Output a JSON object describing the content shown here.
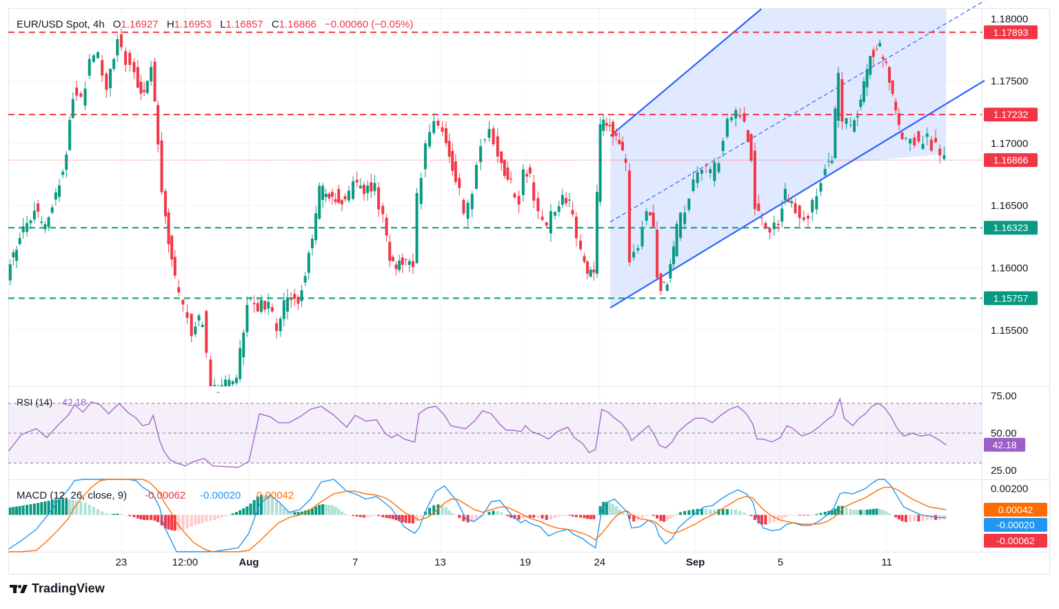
{
  "header": {
    "symbol": "EUR/USD Spot, 4h",
    "open_label": "O",
    "open": "1.16927",
    "high_label": "H",
    "high": "1.16953",
    "low_label": "L",
    "low": "1.16857",
    "close_label": "C",
    "close": "1.16866",
    "change": "−0.00060 (−0.05%)"
  },
  "brand": "TradingView",
  "colors": {
    "up": "#089981",
    "down": "#f23645",
    "channel": "#2962ff",
    "channel_fill": "#dbe5ff",
    "rsi": "#9c5ec9",
    "macd": "#2196f3",
    "signal": "#ff6d00",
    "hist_up_strong": "#089981",
    "hist_up_weak": "#acdfd5",
    "hist_dn_strong": "#f23645",
    "hist_dn_weak": "#fccbcd",
    "resistance": "#f23645",
    "support": "#089981"
  },
  "chart_data": [
    {
      "type": "candlestick",
      "timeframe": "4h",
      "y_axis": {
        "ticks": [
          "1.15500",
          "1.16000",
          "1.16500",
          "1.17000",
          "1.17500",
          "1.18000"
        ],
        "ylim": [
          1.1505,
          1.1808
        ]
      },
      "x_axis": {
        "ticks": [
          "23",
          "12:00",
          "Aug",
          "7",
          "13",
          "19",
          "24",
          "Sep",
          "5",
          "11"
        ]
      },
      "last_price": "1.16866",
      "horizontal_levels": [
        {
          "value": 1.17893,
          "label": "1.17893",
          "kind": "resistance"
        },
        {
          "value": 1.17232,
          "label": "1.17232",
          "kind": "resistance"
        },
        {
          "value": 1.16323,
          "label": "1.16323",
          "kind": "support"
        },
        {
          "value": 1.15757,
          "label": "1.15757",
          "kind": "support"
        }
      ],
      "ascending_channel": {
        "upper": [
          [
            26.0,
            1.1706
          ],
          [
            33.1,
            1.1808
          ]
        ],
        "lower": [
          [
            26.0,
            1.1568
          ],
          [
            37.3,
            1.1685
          ]
        ],
        "midline": [
          [
            26.0,
            1.1637
          ],
          [
            37.3,
            1.1751
          ]
        ]
      },
      "price_path": [
        [
          -2.3,
          1.1596
        ],
        [
          -1.7,
          1.1626
        ],
        [
          -1.0,
          1.1648
        ],
        [
          -0.5,
          1.163
        ],
        [
          0.0,
          1.1663
        ],
        [
          0.5,
          1.169
        ],
        [
          0.8,
          1.174
        ],
        [
          1.2,
          1.1735
        ],
        [
          1.6,
          1.1765
        ],
        [
          2.0,
          1.177
        ],
        [
          2.4,
          1.1745
        ],
        [
          2.9,
          1.1785
        ],
        [
          3.3,
          1.1768
        ],
        [
          3.7,
          1.176
        ],
        [
          4.0,
          1.174
        ],
        [
          4.3,
          1.1752
        ],
        [
          4.5,
          1.176
        ],
        [
          4.8,
          1.17
        ],
        [
          5.0,
          1.166
        ],
        [
          5.3,
          1.162
        ],
        [
          5.6,
          1.159
        ],
        [
          6.0,
          1.157
        ],
        [
          6.4,
          1.155
        ],
        [
          6.9,
          1.156
        ],
        [
          7.3,
          1.15
        ],
        [
          8.5,
          1.151
        ],
        [
          9.0,
          1.1575
        ],
        [
          9.5,
          1.157
        ],
        [
          10.0,
          1.1568
        ],
        [
          10.4,
          1.1555
        ],
        [
          10.9,
          1.1575
        ],
        [
          11.4,
          1.1576
        ],
        [
          11.9,
          1.161
        ],
        [
          12.4,
          1.166
        ],
        [
          13.0,
          1.166
        ],
        [
          13.6,
          1.165
        ],
        [
          14.0,
          1.167
        ],
        [
          14.5,
          1.1665
        ],
        [
          15.0,
          1.1665
        ],
        [
          15.4,
          1.164
        ],
        [
          15.7,
          1.161
        ],
        [
          16.0,
          1.16
        ],
        [
          16.3,
          1.1605
        ],
        [
          16.8,
          1.16
        ],
        [
          17.0,
          1.1655
        ],
        [
          17.4,
          1.1695
        ],
        [
          17.8,
          1.1715
        ],
        [
          18.2,
          1.1715
        ],
        [
          18.5,
          1.169
        ],
        [
          18.8,
          1.1675
        ],
        [
          19.2,
          1.1645
        ],
        [
          19.6,
          1.166
        ],
        [
          20.0,
          1.17
        ],
        [
          20.4,
          1.171
        ],
        [
          20.8,
          1.169
        ],
        [
          21.1,
          1.1675
        ],
        [
          21.4,
          1.1665
        ],
        [
          21.8,
          1.1655
        ],
        [
          22.0,
          1.168
        ],
        [
          22.3,
          1.167
        ],
        [
          22.7,
          1.1645
        ],
        [
          23.1,
          1.1633
        ],
        [
          23.5,
          1.165
        ],
        [
          24.0,
          1.1656
        ],
        [
          24.3,
          1.1642
        ],
        [
          24.7,
          1.1612
        ],
        [
          25.0,
          1.159
        ],
        [
          25.3,
          1.16
        ],
        [
          25.6,
          1.1715
        ],
        [
          25.9,
          1.172
        ],
        [
          26.2,
          1.1708
        ],
        [
          26.5,
          1.17
        ],
        [
          26.8,
          1.168
        ],
        [
          27.0,
          1.161
        ],
        [
          27.4,
          1.162
        ],
        [
          27.8,
          1.165
        ],
        [
          28.1,
          1.1635
        ],
        [
          28.3,
          1.159
        ],
        [
          28.6,
          1.1585
        ],
        [
          28.9,
          1.16
        ],
        [
          29.2,
          1.163
        ],
        [
          29.6,
          1.165
        ],
        [
          30.0,
          1.167
        ],
        [
          30.4,
          1.168
        ],
        [
          30.8,
          1.1675
        ],
        [
          31.2,
          1.169
        ],
        [
          31.6,
          1.1715
        ],
        [
          32.0,
          1.1725
        ],
        [
          32.4,
          1.1715
        ],
        [
          32.7,
          1.169
        ],
        [
          32.9,
          1.165
        ],
        [
          33.2,
          1.164
        ],
        [
          33.6,
          1.1628
        ],
        [
          34.0,
          1.164
        ],
        [
          34.3,
          1.166
        ],
        [
          34.6,
          1.1655
        ],
        [
          35.0,
          1.164
        ],
        [
          35.4,
          1.1645
        ],
        [
          35.8,
          1.166
        ],
        [
          36.2,
          1.168
        ],
        [
          36.5,
          1.169
        ],
        [
          36.8,
          1.1755
        ],
        [
          37.0,
          1.172
        ],
        [
          37.4,
          1.171
        ],
        [
          37.7,
          1.1725
        ],
        [
          38.0,
          1.1745
        ],
        [
          38.3,
          1.177
        ],
        [
          38.6,
          1.178
        ],
        [
          38.9,
          1.177
        ],
        [
          39.2,
          1.175
        ],
        [
          39.5,
          1.1725
        ],
        [
          39.8,
          1.17
        ],
        [
          40.2,
          1.1708
        ],
        [
          40.6,
          1.17
        ],
        [
          41.0,
          1.1705
        ],
        [
          41.4,
          1.1695
        ],
        [
          41.8,
          1.1687
        ]
      ]
    },
    {
      "type": "line",
      "title": "RSI (14)",
      "last_value": "42.18",
      "y_axis": {
        "ticks": [
          "25.00",
          "50.00",
          "75.00"
        ],
        "ylim": [
          19,
          81
        ]
      },
      "x": [
        -2.3,
        -1.7,
        -1.0,
        -0.5,
        0.0,
        0.5,
        0.8,
        1.2,
        1.6,
        2.0,
        2.4,
        2.9,
        3.3,
        3.7,
        4.0,
        4.3,
        4.5,
        4.8,
        5.0,
        5.3,
        5.6,
        6.0,
        6.4,
        6.9,
        7.3,
        8.5,
        9.0,
        9.5,
        10.0,
        10.4,
        10.9,
        11.4,
        11.9,
        12.4,
        13.0,
        13.6,
        14.0,
        14.5,
        15.0,
        15.4,
        15.7,
        16.0,
        16.3,
        16.8,
        17.0,
        17.4,
        17.8,
        18.2,
        18.5,
        18.8,
        19.2,
        19.6,
        20.0,
        20.4,
        20.8,
        21.1,
        21.4,
        21.8,
        22.0,
        22.3,
        22.7,
        23.1,
        23.5,
        24.0,
        24.3,
        24.7,
        25.0,
        25.3,
        25.6,
        25.9,
        26.2,
        26.5,
        26.8,
        27.0,
        27.4,
        27.8,
        28.1,
        28.3,
        28.6,
        28.9,
        29.2,
        29.6,
        30.0,
        30.4,
        30.8,
        31.2,
        31.6,
        32.0,
        32.4,
        32.7,
        32.9,
        33.2,
        33.6,
        34.0,
        34.3,
        34.6,
        35.0,
        35.4,
        35.8,
        36.2,
        36.5,
        36.8,
        37.0,
        37.4,
        37.7,
        38.0,
        38.3,
        38.6,
        38.9,
        39.2,
        39.5,
        39.8,
        40.2,
        40.6,
        41.0,
        41.4,
        41.8
      ],
      "values": [
        38,
        49,
        53,
        47,
        55,
        62,
        69,
        64,
        71,
        69,
        63,
        70,
        64,
        60,
        55,
        56,
        62,
        45,
        38,
        32,
        30,
        28,
        31,
        33,
        28,
        27,
        31,
        63,
        61,
        57,
        57,
        61,
        66,
        68,
        62,
        54,
        62,
        58,
        59,
        50,
        47,
        49,
        46,
        44,
        63,
        67,
        68,
        62,
        55,
        54,
        53,
        58,
        65,
        63,
        56,
        52,
        52,
        51,
        55,
        51,
        49,
        46,
        51,
        54,
        47,
        43,
        37,
        39,
        66,
        64,
        60,
        57,
        52,
        45,
        50,
        55,
        48,
        42,
        40,
        44,
        51,
        56,
        60,
        60,
        57,
        62,
        66,
        68,
        63,
        56,
        46,
        46,
        44,
        47,
        55,
        53,
        48,
        50,
        54,
        59,
        62,
        73,
        60,
        55,
        60,
        63,
        68,
        70,
        67,
        61,
        53,
        48,
        50,
        48,
        49,
        46,
        42
      ]
    },
    {
      "type": "macd",
      "title": "MACD (12, 26, close, 9)",
      "histogram": "-0.00062",
      "macd": "-0.00020",
      "signal": "0.00042",
      "y_axis": {
        "ticks": [
          "0.00200"
        ],
        "ylim": [
          -0.0028,
          0.0027
        ]
      },
      "x": [
        -2.3,
        -1.7,
        -1.0,
        -0.5,
        0.0,
        0.5,
        0.8,
        1.2,
        1.6,
        2.0,
        2.4,
        2.9,
        3.3,
        3.7,
        4.0,
        4.3,
        4.5,
        4.8,
        5.0,
        5.3,
        5.6,
        6.0,
        6.4,
        6.9,
        7.3,
        8.5,
        9.0,
        9.5,
        10.0,
        10.4,
        10.9,
        11.4,
        11.9,
        12.4,
        13.0,
        13.6,
        14.0,
        14.5,
        15.0,
        15.4,
        15.7,
        16.0,
        16.3,
        16.8,
        17.0,
        17.4,
        17.8,
        18.2,
        18.5,
        18.8,
        19.2,
        19.6,
        20.0,
        20.4,
        20.8,
        21.1,
        21.4,
        21.8,
        22.0,
        22.3,
        22.7,
        23.1,
        23.5,
        24.0,
        24.3,
        24.7,
        25.0,
        25.3,
        25.6,
        25.9,
        26.2,
        26.5,
        26.8,
        27.0,
        27.4,
        27.8,
        28.1,
        28.3,
        28.6,
        28.9,
        29.2,
        29.6,
        30.0,
        30.4,
        30.8,
        31.2,
        31.6,
        32.0,
        32.4,
        32.7,
        32.9,
        33.2,
        33.6,
        34.0,
        34.3,
        34.6,
        35.0,
        35.4,
        35.8,
        36.2,
        36.5,
        36.8,
        37.0,
        37.4,
        37.7,
        38.0,
        38.3,
        38.6,
        38.9,
        39.2,
        39.5,
        39.8,
        40.2,
        40.6,
        41.0,
        41.4,
        41.8
      ],
      "macd_values": [
        -0.0026,
        -0.00195,
        -0.0011,
        -0.0001,
        0.001,
        0.0019,
        0.0026,
        0.0032,
        0.0034,
        0.0032,
        0.003,
        0.0033,
        0.003,
        0.0026,
        0.0021,
        0.0018,
        0.0015,
        0.0006,
        -0.0008,
        -0.0018,
        -0.0028,
        -0.0034,
        -0.0036,
        -0.0036,
        -0.0038,
        -0.0025,
        -0.0014,
        0.0008,
        0.0015,
        0.001,
        0.0002,
        0.0004,
        0.0012,
        0.0025,
        0.0029,
        0.0018,
        0.0016,
        0.0012,
        0.0014,
        0.0009,
        0.0005,
        -0.0002,
        -0.0009,
        -0.0014,
        -0.001,
        0.0006,
        0.0018,
        0.0022,
        0.0016,
        0.001,
        -0.0003,
        -0.0005,
        0.0,
        0.001,
        0.0011,
        0.0005,
        -0.0001,
        -0.0006,
        -0.0004,
        -0.0007,
        -0.0009,
        -0.0016,
        -0.0013,
        -0.0011,
        -0.0015,
        -0.0018,
        -0.0022,
        -0.0025,
        0.0004,
        0.001,
        0.0012,
        0.0007,
        0.0002,
        -0.001,
        -0.0009,
        -0.0004,
        -0.0007,
        -0.0016,
        -0.0022,
        -0.0018,
        -0.001,
        -0.0004,
        0.0001,
        0.0006,
        0.0007,
        0.0012,
        0.0016,
        0.0019,
        0.0016,
        0.001,
        -0.0002,
        -0.001,
        -0.0012,
        -0.0011,
        -0.0007,
        -0.0006,
        -0.0008,
        -0.0008,
        -0.0005,
        0.0,
        0.0005,
        0.0016,
        0.0017,
        0.0016,
        0.0018,
        0.002,
        0.0024,
        0.0028,
        0.0027,
        0.0022,
        0.0014,
        0.0006,
        0.0003,
        0.0,
        -0.0001,
        -0.0002,
        -0.0002
      ],
      "signal_values": [
        -0.0036,
        -0.0032,
        -0.0027,
        -0.002,
        -0.0012,
        -0.0003,
        0.0006,
        0.0014,
        0.0021,
        0.0026,
        0.0029,
        0.0031,
        0.0031,
        0.003,
        0.0028,
        0.0025,
        0.0022,
        0.0017,
        0.001,
        0.0003,
        -0.0006,
        -0.0014,
        -0.0021,
        -0.0026,
        -0.003,
        -0.003,
        -0.0027,
        -0.002,
        -0.0012,
        -0.0006,
        -0.0002,
        0.0,
        0.0004,
        0.001,
        0.0016,
        0.0018,
        0.0018,
        0.0016,
        0.0015,
        0.0013,
        0.001,
        0.0006,
        0.0002,
        -0.0002,
        -0.0004,
        -0.0002,
        0.0003,
        0.0009,
        0.0012,
        0.0012,
        0.0008,
        0.0004,
        0.0002,
        0.0004,
        0.0006,
        0.0006,
        0.0004,
        0.0001,
        -0.0001,
        -0.0003,
        -0.0005,
        -0.0008,
        -0.001,
        -0.0011,
        -0.0012,
        -0.0014,
        -0.0016,
        -0.0019,
        -0.0014,
        -0.0008,
        -0.0002,
        0.0002,
        0.0003,
        0.0,
        -0.0003,
        -0.0004,
        -0.0005,
        -0.0008,
        -0.0012,
        -0.0014,
        -0.0013,
        -0.001,
        -0.0007,
        -0.0003,
        0.0,
        0.0004,
        0.0008,
        0.0012,
        0.0014,
        0.0013,
        0.0009,
        0.0004,
        -0.0001,
        -0.0004,
        -0.0005,
        -0.0006,
        -0.0007,
        -0.0007,
        -0.0007,
        -0.0005,
        -0.0002,
        0.0002,
        0.0006,
        0.0009,
        0.0011,
        0.0013,
        0.0016,
        0.0019,
        0.0021,
        0.0021,
        0.0019,
        0.0016,
        0.0012,
        0.0009,
        0.0006,
        0.0005,
        0.0004
      ]
    }
  ]
}
